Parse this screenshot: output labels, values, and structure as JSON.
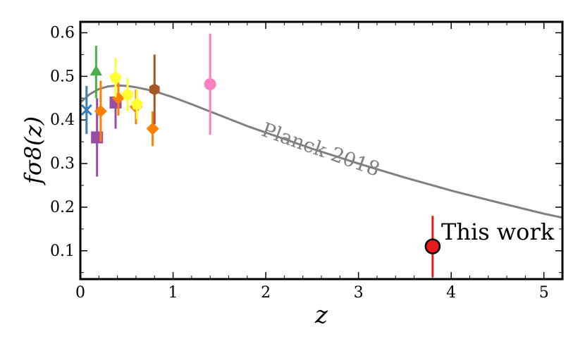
{
  "chart_data": {
    "type": "scatter",
    "xlabel": "z",
    "ylabel": "fσ8(z)",
    "xlim": [
      0,
      5.2
    ],
    "ylim": [
      0.035,
      0.625
    ],
    "xticks": [
      0,
      1,
      2,
      3,
      4,
      5
    ],
    "yticks": [
      0.1,
      0.2,
      0.3,
      0.4,
      0.5,
      0.6
    ],
    "xtick_labels": [
      "0",
      "1",
      "2",
      "3",
      "4",
      "5"
    ],
    "ytick_labels": [
      "0.1",
      "0.2",
      "0.3",
      "0.4",
      "0.5",
      "0.6"
    ],
    "grid": false,
    "model_curve": {
      "label": "Planck 2018",
      "color": "#808080",
      "x": [
        0.0,
        0.1,
        0.2,
        0.3,
        0.4,
        0.5,
        0.6,
        0.8,
        1.0,
        1.2,
        1.5,
        1.8,
        2.0,
        2.5,
        3.0,
        3.5,
        4.0,
        4.5,
        5.0,
        5.2
      ],
      "y": [
        0.44,
        0.459,
        0.471,
        0.477,
        0.479,
        0.478,
        0.475,
        0.466,
        0.452,
        0.436,
        0.411,
        0.386,
        0.371,
        0.334,
        0.3,
        0.268,
        0.238,
        0.211,
        0.185,
        0.176
      ]
    },
    "series": [
      {
        "marker": "x",
        "color": "#377eb8",
        "points": [
          {
            "x": 0.067,
            "y": 0.423,
            "err": 0.055
          }
        ]
      },
      {
        "marker": "triangle",
        "color": "#4daf4a",
        "points": [
          {
            "x": 0.17,
            "y": 0.51,
            "err": 0.06
          }
        ]
      },
      {
        "marker": "square",
        "color": "#984ea3",
        "points": [
          {
            "x": 0.18,
            "y": 0.36,
            "err": 0.09
          },
          {
            "x": 0.38,
            "y": 0.44,
            "err": 0.06
          }
        ]
      },
      {
        "marker": "diamond",
        "color": "#ff7f00",
        "points": [
          {
            "x": 0.22,
            "y": 0.42,
            "err": 0.07
          },
          {
            "x": 0.41,
            "y": 0.45,
            "err": 0.04
          },
          {
            "x": 0.6,
            "y": 0.43,
            "err": 0.04
          },
          {
            "x": 0.78,
            "y": 0.38,
            "err": 0.04
          }
        ]
      },
      {
        "marker": "pentagon",
        "color": "#ffff33",
        "points": [
          {
            "x": 0.38,
            "y": 0.497,
            "err": 0.045
          },
          {
            "x": 0.51,
            "y": 0.458,
            "err": 0.038
          },
          {
            "x": 0.61,
            "y": 0.436,
            "err": 0.034
          }
        ]
      },
      {
        "marker": "hexagon",
        "color": "#a65628",
        "points": [
          {
            "x": 0.8,
            "y": 0.47,
            "err": 0.08
          }
        ]
      },
      {
        "marker": "circle",
        "color": "#f781bf",
        "points": [
          {
            "x": 1.4,
            "y": 0.482,
            "err": 0.116
          }
        ]
      },
      {
        "marker": "circle",
        "color": "#e41a1c",
        "edgecolor": "#000000",
        "label": "This work",
        "points": [
          {
            "x": 3.8,
            "y": 0.11,
            "err": 0.07
          }
        ]
      }
    ]
  }
}
